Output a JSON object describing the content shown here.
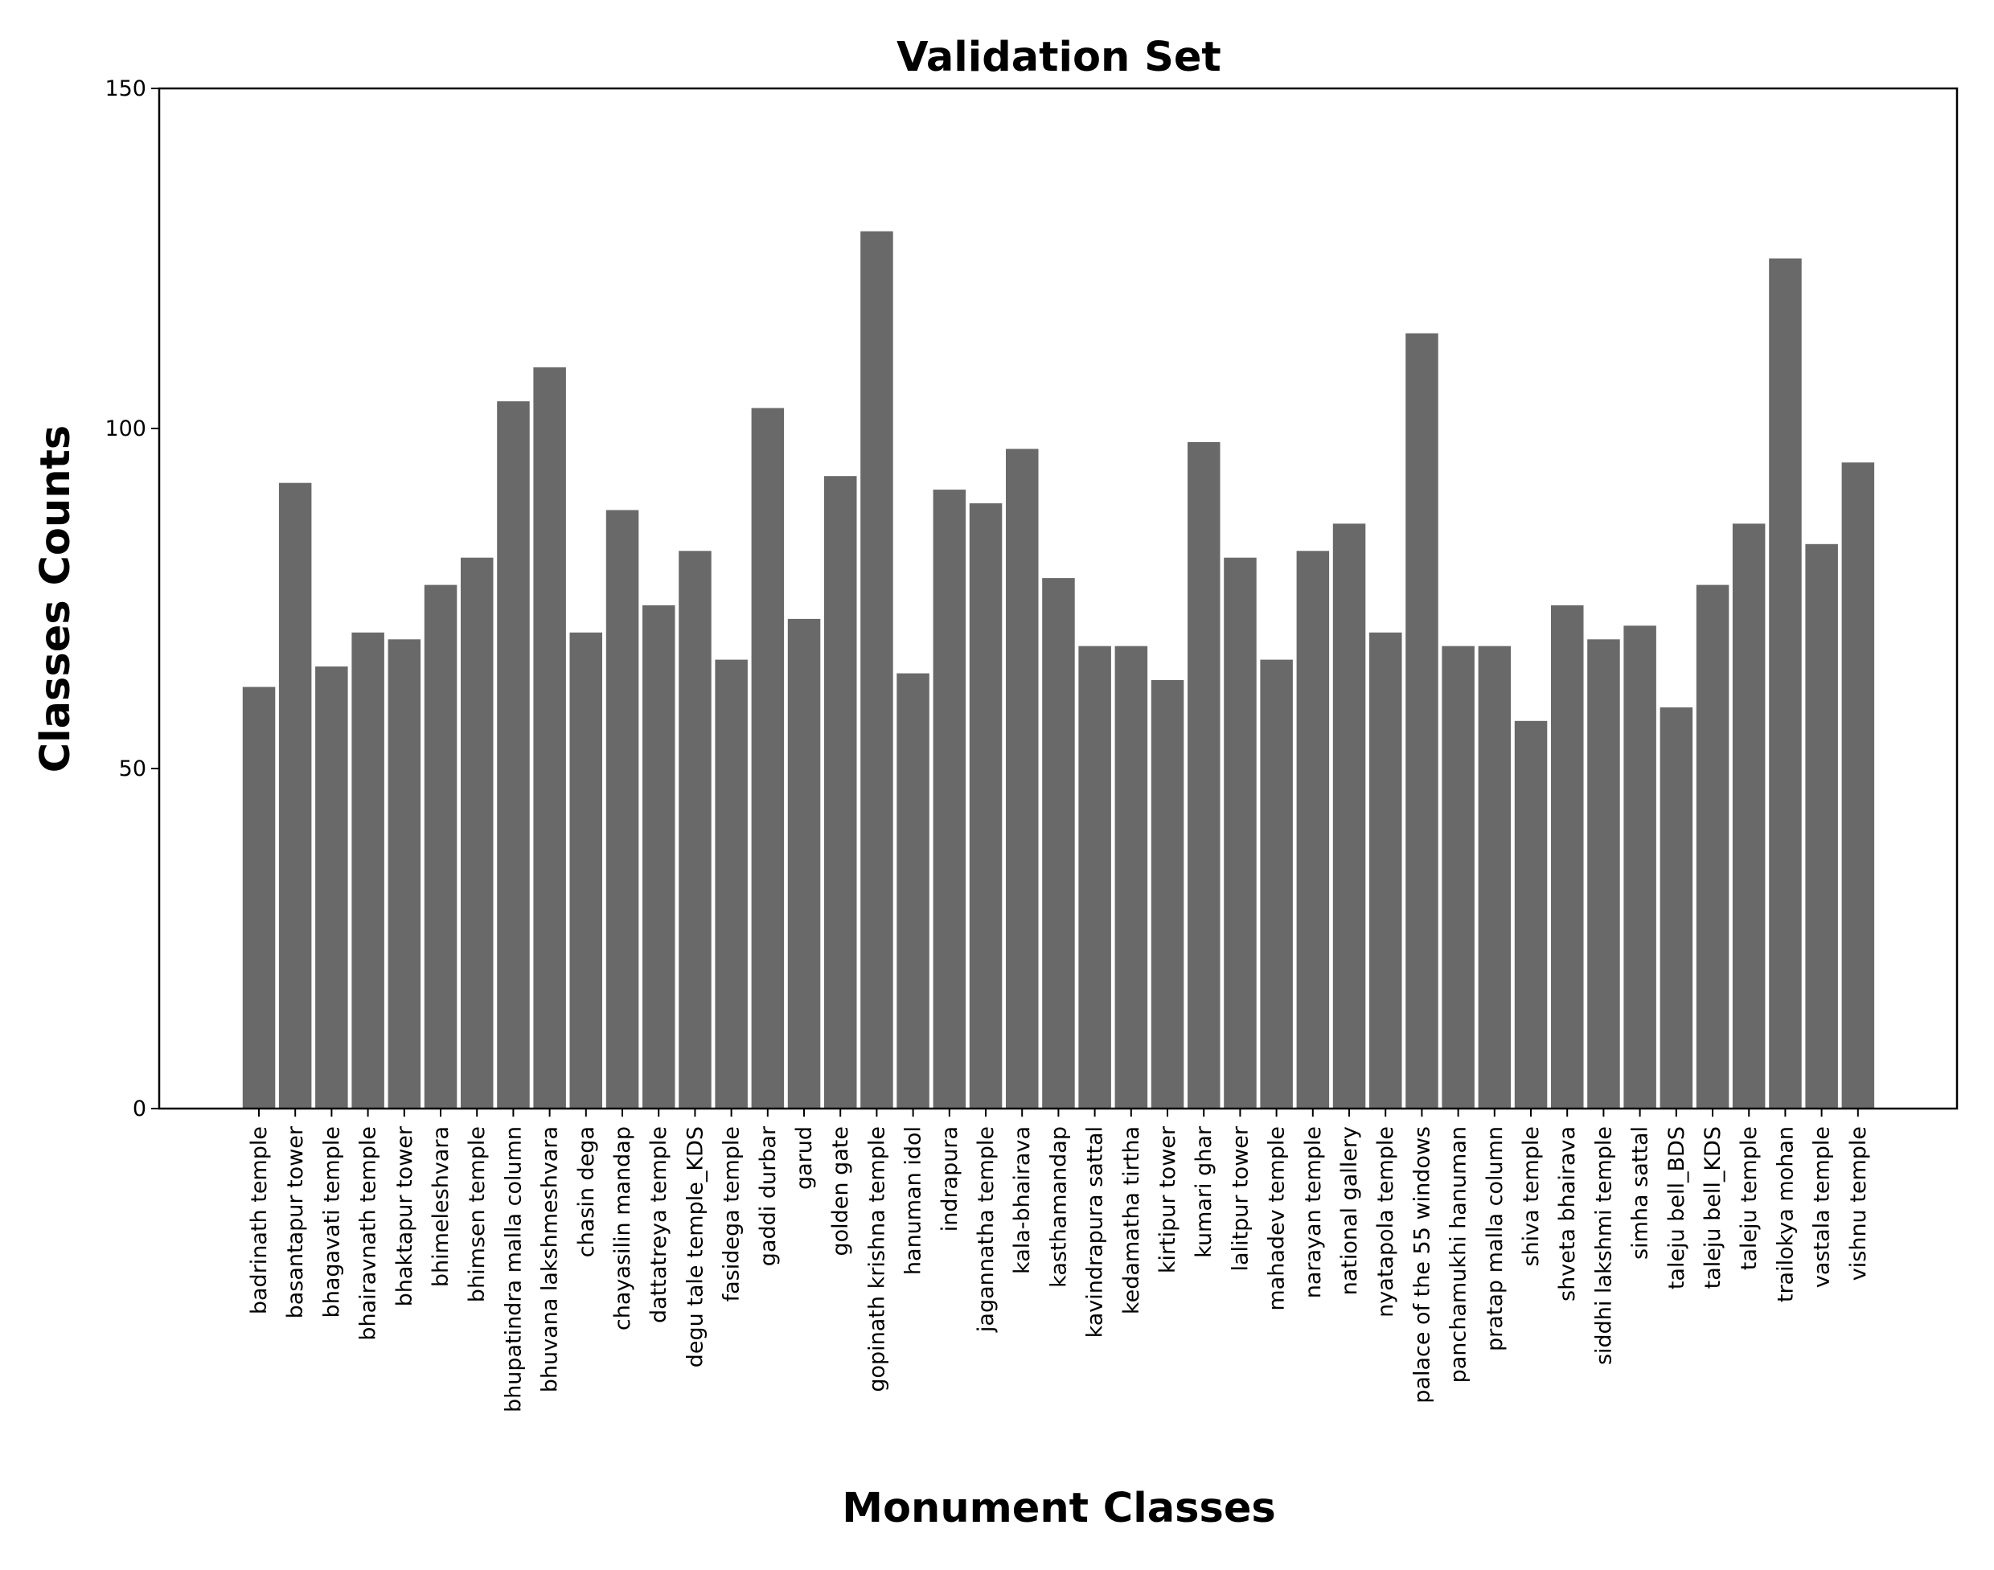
{
  "chart_data": {
    "type": "bar",
    "title": "Validation Set",
    "xlabel": "Monument Classes",
    "ylabel": "Classes Counts",
    "ylim": [
      0,
      150
    ],
    "yticks": [
      "0",
      "50",
      "100",
      "150"
    ],
    "grid": false,
    "bar_color": "#696969",
    "categories": [
      "badrinath temple",
      "basantapur tower",
      "bhagavati temple",
      "bhairavnath temple",
      "bhaktapur tower",
      "bhimeleshvara",
      "bhimsen temple",
      "bhupatindra malla column",
      "bhuvana lakshmeshvara",
      "chasin dega",
      "chayasilin mandap",
      "dattatreya temple",
      "degu tale temple_KDS",
      "fasidega temple",
      "gaddi durbar",
      "garud",
      "golden gate",
      "gopinath krishna temple",
      "hanuman idol",
      "indrapura",
      "jagannatha temple",
      "kala-bhairava",
      "kasthamandap",
      "kavindrapura sattal",
      "kedamatha tirtha",
      "kirtipur tower",
      "kumari ghar",
      "lalitpur tower",
      "mahadev temple",
      "narayan temple",
      "national gallery",
      "nyatapola temple",
      "palace of the 55 windows",
      "panchamukhi hanuman",
      "pratap malla column",
      "shiva temple",
      "shveta bhairava",
      "siddhi lakshmi temple",
      "simha sattal",
      "taleju bell_BDS",
      "taleju bell_KDS",
      "taleju temple",
      "trailokya mohan",
      "vastala temple",
      "vishnu temple"
    ],
    "values": [
      62,
      92,
      65,
      70,
      69,
      77,
      81,
      104,
      109,
      70,
      88,
      74,
      82,
      66,
      103,
      72,
      93,
      129,
      64,
      91,
      89,
      97,
      78,
      68,
      68,
      63,
      98,
      81,
      66,
      82,
      86,
      70,
      114,
      68,
      68,
      57,
      74,
      69,
      71,
      59,
      77,
      86,
      125,
      83,
      95
    ]
  }
}
